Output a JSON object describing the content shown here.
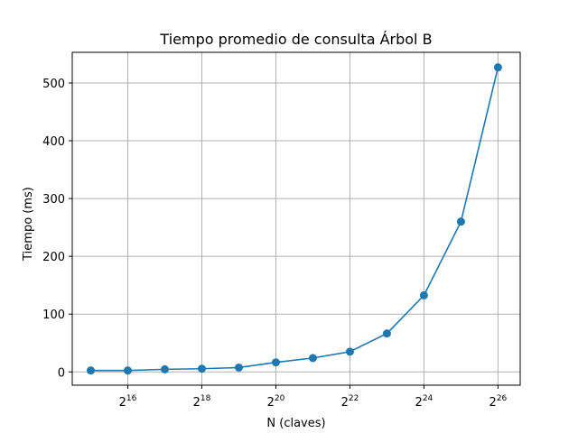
{
  "chart_data": {
    "type": "line",
    "title": "Tiempo promedio de consulta Árbol B",
    "xlabel": "N (claves)",
    "ylabel": "Tiempo (ms)",
    "x_scale": "log2",
    "x_tick_base": "2",
    "x_ticks": [
      16,
      18,
      20,
      22,
      24,
      26
    ],
    "y_ticks": [
      0,
      100,
      200,
      300,
      400,
      500
    ],
    "xlim_exp": [
      14.5,
      26.6
    ],
    "ylim": [
      -23,
      553
    ],
    "grid": true,
    "series": [
      {
        "color": "#1f77b4",
        "x_exp": [
          15,
          16,
          17,
          18,
          19,
          20,
          21,
          22,
          23,
          24,
          25,
          26
        ],
        "values": [
          2.5,
          2.5,
          4.5,
          5.5,
          7.5,
          16.5,
          24,
          35,
          66.5,
          132.5,
          260,
          527
        ]
      }
    ]
  }
}
